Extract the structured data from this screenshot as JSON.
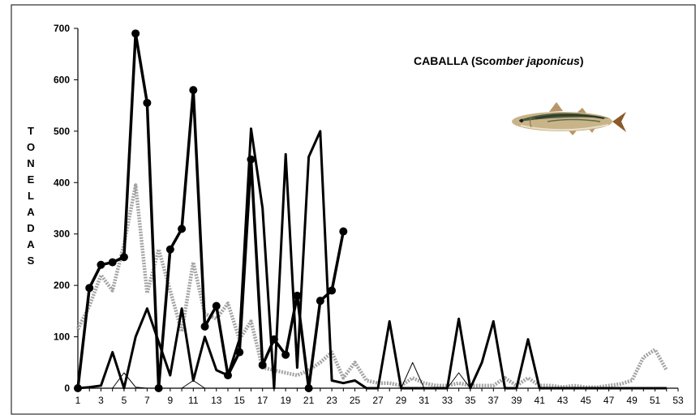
{
  "chart_data": {
    "type": "line",
    "title": "CABALLA (Scomber japonicus)",
    "title_parts": {
      "prefix": "CABALLA  (Sco",
      "italic": "mber japonicus",
      "suffix": ")"
    },
    "ylabel": "TONELADAS",
    "ylabel_letters": [
      "T",
      "O",
      "N",
      "E",
      "L",
      "A",
      "D",
      "A",
      "S"
    ],
    "xlabel": "",
    "x_ticks": [
      1,
      3,
      5,
      7,
      9,
      11,
      13,
      15,
      17,
      19,
      21,
      23,
      25,
      27,
      29,
      31,
      33,
      35,
      37,
      39,
      41,
      43,
      45,
      47,
      49,
      51,
      53
    ],
    "y_ticks": [
      0,
      100,
      200,
      300,
      400,
      500,
      600,
      700
    ],
    "xlim": [
      1,
      53
    ],
    "ylim": [
      0,
      700
    ],
    "grid": false,
    "legend": "none",
    "icon": "mackerel-fish-icon",
    "colors": {
      "black": "#000000",
      "gray": "#a0a0a0"
    },
    "series": [
      {
        "style": "black-markers",
        "x": [
          1,
          2,
          3,
          4,
          5,
          6,
          7,
          8,
          9,
          10,
          11,
          12,
          13,
          14,
          15,
          16,
          17,
          18,
          19,
          20,
          21,
          22,
          23,
          24
        ],
        "y": [
          0,
          195,
          240,
          245,
          255,
          690,
          555,
          0,
          270,
          310,
          580,
          120,
          160,
          25,
          70,
          445,
          45,
          95,
          65,
          180,
          0,
          170,
          190,
          305
        ]
      },
      {
        "style": "gray-dashed",
        "x": [
          1,
          2,
          3,
          4,
          5,
          6,
          7,
          8,
          9,
          10,
          11,
          12,
          13,
          14,
          15,
          16,
          17,
          18,
          19,
          20,
          21,
          22,
          23,
          24,
          25,
          26,
          27,
          28,
          29,
          30,
          31,
          32,
          33,
          34,
          35,
          36,
          37,
          38,
          39,
          40,
          41,
          42,
          43,
          44,
          45,
          46,
          47,
          48,
          49,
          50,
          51,
          52
        ],
        "y": [
          115,
          160,
          220,
          190,
          280,
          395,
          185,
          270,
          190,
          110,
          245,
          145,
          135,
          165,
          95,
          130,
          40,
          35,
          30,
          25,
          35,
          50,
          70,
          20,
          50,
          15,
          10,
          10,
          5,
          20,
          10,
          5,
          5,
          10,
          5,
          5,
          5,
          20,
          5,
          20,
          5,
          5,
          2,
          5,
          2,
          2,
          5,
          8,
          15,
          60,
          75,
          35
        ]
      },
      {
        "style": "black-line",
        "x": [
          1,
          2,
          3,
          4,
          5,
          6,
          7,
          8,
          9,
          10,
          11,
          12,
          13,
          14,
          15,
          16,
          17,
          18,
          19,
          20,
          21,
          22,
          23,
          24,
          25,
          26,
          27,
          28,
          29,
          30,
          31,
          32,
          33,
          34,
          35,
          36,
          37,
          38,
          39,
          40,
          41,
          42,
          43,
          44,
          45,
          46,
          47,
          48,
          49,
          50,
          51,
          52
        ],
        "y": [
          0,
          2,
          5,
          70,
          0,
          100,
          155,
          90,
          25,
          155,
          15,
          100,
          35,
          25,
          95,
          505,
          350,
          0,
          455,
          40,
          450,
          500,
          15,
          10,
          15,
          0,
          0,
          130,
          0,
          0,
          0,
          0,
          0,
          135,
          0,
          50,
          130,
          0,
          0,
          95,
          0,
          0,
          0,
          0,
          0,
          0,
          0,
          0,
          0,
          0,
          0,
          0
        ]
      },
      {
        "style": "thin-black-line",
        "x": [
          1,
          2,
          3,
          4,
          5,
          6,
          7,
          8,
          9,
          10,
          11,
          12,
          13,
          14,
          15,
          16,
          17,
          18,
          19,
          20,
          21,
          22,
          23,
          24,
          25,
          26,
          27,
          28,
          29,
          30,
          31,
          32,
          33,
          34,
          35,
          36,
          37,
          38,
          39,
          40,
          41,
          42,
          43,
          44,
          45,
          46,
          47,
          48,
          49,
          50,
          51,
          52
        ],
        "y": [
          0,
          0,
          0,
          0,
          30,
          2,
          0,
          0,
          0,
          0,
          15,
          0,
          0,
          0,
          0,
          0,
          0,
          0,
          0,
          0,
          0,
          0,
          0,
          0,
          0,
          0,
          0,
          0,
          0,
          50,
          0,
          0,
          0,
          30,
          0,
          0,
          0,
          0,
          0,
          0,
          0,
          0,
          0,
          0,
          0,
          0,
          0,
          0,
          0,
          0,
          0,
          0
        ]
      }
    ]
  }
}
